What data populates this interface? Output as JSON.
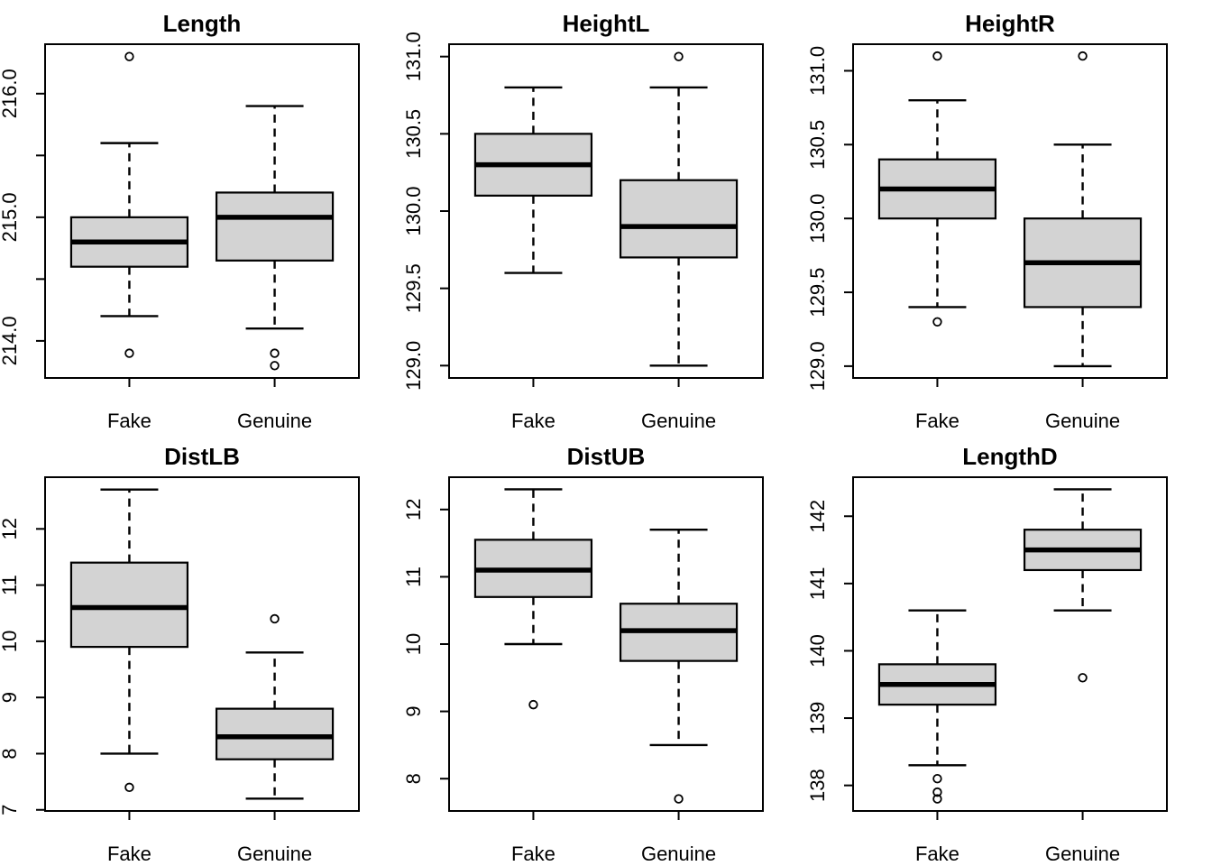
{
  "figure": {
    "background": "#ffffff",
    "box_fill": "#d3d3d3",
    "line_color": "#000000",
    "grid": {
      "rows": 2,
      "cols": 3
    },
    "categories": [
      "Fake",
      "Genuine"
    ]
  },
  "chart_data": [
    {
      "type": "boxplot",
      "title": "Length",
      "categories": [
        "Fake",
        "Genuine"
      ],
      "ylim": [
        213.7,
        216.4
      ],
      "yticks": [
        214.0,
        214.5,
        215.0,
        215.5,
        216.0
      ],
      "ytick_labels": [
        "214.0",
        "",
        "215.0",
        "",
        "216.0"
      ],
      "series": [
        {
          "name": "Fake",
          "whisker_low": 214.2,
          "q1": 214.6,
          "median": 214.8,
          "q3": 215.0,
          "whisker_high": 215.6,
          "outliers": [
            216.3,
            213.9
          ]
        },
        {
          "name": "Genuine",
          "whisker_low": 214.1,
          "q1": 214.65,
          "median": 215.0,
          "q3": 215.2,
          "whisker_high": 215.9,
          "outliers": [
            213.9,
            213.8
          ]
        }
      ]
    },
    {
      "type": "boxplot",
      "title": "HeightL",
      "categories": [
        "Fake",
        "Genuine"
      ],
      "ylim": [
        128.92,
        131.08
      ],
      "yticks": [
        129.0,
        129.5,
        130.0,
        130.5,
        131.0
      ],
      "ytick_labels": [
        "129.0",
        "129.5",
        "130.0",
        "130.5",
        "131.0"
      ],
      "series": [
        {
          "name": "Fake",
          "whisker_low": 129.6,
          "q1": 130.1,
          "median": 130.3,
          "q3": 130.5,
          "whisker_high": 130.8,
          "outliers": []
        },
        {
          "name": "Genuine",
          "whisker_low": 129.0,
          "q1": 129.7,
          "median": 129.9,
          "q3": 130.2,
          "whisker_high": 130.8,
          "outliers": [
            131.0
          ]
        }
      ]
    },
    {
      "type": "boxplot",
      "title": "HeightR",
      "categories": [
        "Fake",
        "Genuine"
      ],
      "ylim": [
        128.92,
        131.18
      ],
      "yticks": [
        129.0,
        129.5,
        130.0,
        130.5,
        131.0
      ],
      "ytick_labels": [
        "129.0",
        "129.5",
        "130.0",
        "130.5",
        "131.0"
      ],
      "series": [
        {
          "name": "Fake",
          "whisker_low": 129.4,
          "q1": 130.0,
          "median": 130.2,
          "q3": 130.4,
          "whisker_high": 130.8,
          "outliers": [
            131.1,
            129.3
          ]
        },
        {
          "name": "Genuine",
          "whisker_low": 129.0,
          "q1": 129.4,
          "median": 129.7,
          "q3": 130.0,
          "whisker_high": 130.5,
          "outliers": [
            131.1
          ]
        }
      ]
    },
    {
      "type": "boxplot",
      "title": "DistLB",
      "categories": [
        "Fake",
        "Genuine"
      ],
      "ylim": [
        6.98,
        12.92
      ],
      "yticks": [
        7,
        8,
        9,
        10,
        11,
        12
      ],
      "ytick_labels": [
        "7",
        "8",
        "9",
        "10",
        "11",
        "12"
      ],
      "series": [
        {
          "name": "Fake",
          "whisker_low": 8.0,
          "q1": 9.9,
          "median": 10.6,
          "q3": 11.4,
          "whisker_high": 12.7,
          "outliers": [
            7.4
          ]
        },
        {
          "name": "Genuine",
          "whisker_low": 7.2,
          "q1": 7.9,
          "median": 8.3,
          "q3": 8.8,
          "whisker_high": 9.8,
          "outliers": [
            10.4
          ]
        }
      ]
    },
    {
      "type": "boxplot",
      "title": "DistUB",
      "categories": [
        "Fake",
        "Genuine"
      ],
      "ylim": [
        7.52,
        12.48
      ],
      "yticks": [
        8,
        9,
        10,
        11,
        12
      ],
      "ytick_labels": [
        "8",
        "9",
        "10",
        "11",
        "12"
      ],
      "series": [
        {
          "name": "Fake",
          "whisker_low": 10.0,
          "q1": 10.7,
          "median": 11.1,
          "q3": 11.55,
          "whisker_high": 12.3,
          "outliers": [
            9.1
          ]
        },
        {
          "name": "Genuine",
          "whisker_low": 8.5,
          "q1": 9.75,
          "median": 10.2,
          "q3": 10.6,
          "whisker_high": 11.7,
          "outliers": [
            7.7
          ]
        }
      ]
    },
    {
      "type": "boxplot",
      "title": "LengthD",
      "categories": [
        "Fake",
        "Genuine"
      ],
      "ylim": [
        137.62,
        142.58
      ],
      "yticks": [
        138,
        139,
        140,
        141,
        142
      ],
      "ytick_labels": [
        "138",
        "139",
        "140",
        "141",
        "142"
      ],
      "series": [
        {
          "name": "Fake",
          "whisker_low": 138.3,
          "q1": 139.2,
          "median": 139.5,
          "q3": 139.8,
          "whisker_high": 140.6,
          "outliers": [
            138.1,
            137.9,
            137.8
          ]
        },
        {
          "name": "Genuine",
          "whisker_low": 140.6,
          "q1": 141.2,
          "median": 141.5,
          "q3": 141.8,
          "whisker_high": 142.4,
          "outliers": [
            139.6
          ]
        }
      ]
    }
  ]
}
